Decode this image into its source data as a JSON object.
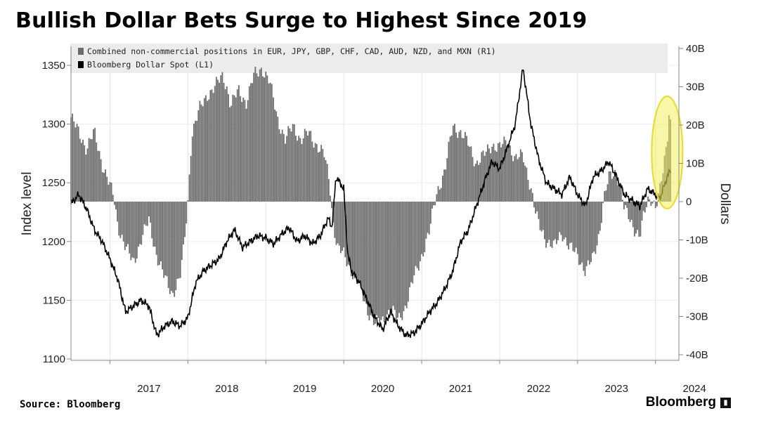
{
  "title": "Bullish Dollar Bets Surge to Highest Since 2019",
  "source": "Source: Bloomberg",
  "brand": "Bloomberg",
  "colors": {
    "bars": "#6b6b6b",
    "line": "#000000",
    "highlight": "#f3ee5f",
    "legend_bg": "#ececec"
  },
  "chart_data": {
    "type": "bar+line",
    "left_axis": {
      "label": "Index level",
      "ylim": [
        1100,
        1360
      ],
      "ticks": [
        1100,
        1150,
        1200,
        1250,
        1300,
        1350
      ]
    },
    "right_axis": {
      "label": "Dollars",
      "ylim": [
        -40,
        40
      ],
      "ticks": [
        "-40B",
        "-30B",
        "-20B",
        "-10B",
        "0",
        "10B",
        "20B",
        "30B",
        "40B"
      ],
      "tick_values": [
        -40,
        -30,
        -20,
        -10,
        0,
        10,
        20,
        30,
        40
      ]
    },
    "x_axis": {
      "range": [
        2016.5,
        2024.3
      ],
      "tick_labels": [
        "2017",
        "2018",
        "2019",
        "2020",
        "2021",
        "2022",
        "2023",
        "2024"
      ]
    },
    "legend": [
      "Combined non-commercial positions in EUR, JPY, GBP, CHF, CAD, AUD, NZD, and MXN (R1)",
      "Bloomberg Dollar Spot (L1)"
    ],
    "series": [
      {
        "name": "Combined non-commercial positions (R1), $B",
        "type": "bar",
        "axis": "right",
        "points": [
          [
            2016.5,
            22
          ],
          [
            2016.6,
            18
          ],
          [
            2016.7,
            14
          ],
          [
            2016.8,
            18
          ],
          [
            2016.9,
            10
          ],
          [
            2017.0,
            4
          ],
          [
            2017.05,
            1
          ],
          [
            2017.1,
            -6
          ],
          [
            2017.2,
            -12
          ],
          [
            2017.3,
            -16
          ],
          [
            2017.4,
            -10
          ],
          [
            2017.5,
            -5
          ],
          [
            2017.6,
            -14
          ],
          [
            2017.7,
            -20
          ],
          [
            2017.8,
            -24
          ],
          [
            2017.9,
            -20
          ],
          [
            2017.95,
            -12
          ],
          [
            2018.0,
            0
          ],
          [
            2018.05,
            18
          ],
          [
            2018.15,
            24
          ],
          [
            2018.25,
            28
          ],
          [
            2018.35,
            30
          ],
          [
            2018.45,
            33
          ],
          [
            2018.5,
            30
          ],
          [
            2018.55,
            25
          ],
          [
            2018.65,
            29
          ],
          [
            2018.75,
            26
          ],
          [
            2018.85,
            33
          ],
          [
            2018.95,
            35
          ],
          [
            2019.05,
            31
          ],
          [
            2019.15,
            22
          ],
          [
            2019.25,
            16
          ],
          [
            2019.35,
            20
          ],
          [
            2019.45,
            16
          ],
          [
            2019.55,
            18
          ],
          [
            2019.65,
            15
          ],
          [
            2019.75,
            12
          ],
          [
            2019.82,
            5
          ],
          [
            2019.86,
            -5
          ],
          [
            2019.92,
            -12
          ],
          [
            2020.0,
            -14
          ],
          [
            2020.1,
            -18
          ],
          [
            2020.2,
            -22
          ],
          [
            2020.3,
            -28
          ],
          [
            2020.4,
            -32
          ],
          [
            2020.5,
            -31
          ],
          [
            2020.6,
            -28
          ],
          [
            2020.7,
            -31
          ],
          [
            2020.8,
            -27
          ],
          [
            2020.9,
            -20
          ],
          [
            2021.0,
            -14
          ],
          [
            2021.1,
            -8
          ],
          [
            2021.15,
            -2
          ],
          [
            2021.2,
            3
          ],
          [
            2021.3,
            8
          ],
          [
            2021.4,
            20
          ],
          [
            2021.5,
            18
          ],
          [
            2021.6,
            15
          ],
          [
            2021.7,
            10
          ],
          [
            2021.8,
            12
          ],
          [
            2021.9,
            15
          ],
          [
            2022.0,
            14
          ],
          [
            2022.1,
            16
          ],
          [
            2022.2,
            11
          ],
          [
            2022.3,
            12
          ],
          [
            2022.4,
            4
          ],
          [
            2022.45,
            -2
          ],
          [
            2022.5,
            -6
          ],
          [
            2022.6,
            -10
          ],
          [
            2022.7,
            -12
          ],
          [
            2022.8,
            -8
          ],
          [
            2022.9,
            -12
          ],
          [
            2023.0,
            -14
          ],
          [
            2023.1,
            -18
          ],
          [
            2023.2,
            -15
          ],
          [
            2023.28,
            -8
          ],
          [
            2023.33,
            0
          ],
          [
            2023.4,
            6
          ],
          [
            2023.5,
            8
          ],
          [
            2023.55,
            4
          ],
          [
            2023.6,
            -2
          ],
          [
            2023.7,
            -6
          ],
          [
            2023.8,
            -9
          ],
          [
            2023.85,
            -4
          ],
          [
            2023.9,
            0
          ],
          [
            2023.95,
            1
          ],
          [
            2024.0,
            -1
          ],
          [
            2024.05,
            2
          ],
          [
            2024.1,
            8
          ],
          [
            2024.15,
            16
          ],
          [
            2024.18,
            26
          ],
          [
            2024.2,
            18
          ]
        ]
      },
      {
        "name": "Bloomberg Dollar Spot (L1)",
        "type": "line",
        "axis": "left",
        "points": [
          [
            2016.5,
            1232
          ],
          [
            2016.6,
            1240
          ],
          [
            2016.7,
            1228
          ],
          [
            2016.8,
            1210
          ],
          [
            2016.9,
            1200
          ],
          [
            2017.0,
            1185
          ],
          [
            2017.1,
            1168
          ],
          [
            2017.2,
            1140
          ],
          [
            2017.3,
            1145
          ],
          [
            2017.4,
            1150
          ],
          [
            2017.5,
            1145
          ],
          [
            2017.6,
            1120
          ],
          [
            2017.7,
            1128
          ],
          [
            2017.8,
            1132
          ],
          [
            2017.9,
            1128
          ],
          [
            2018.0,
            1135
          ],
          [
            2018.1,
            1165
          ],
          [
            2018.2,
            1175
          ],
          [
            2018.3,
            1180
          ],
          [
            2018.4,
            1185
          ],
          [
            2018.5,
            1200
          ],
          [
            2018.6,
            1210
          ],
          [
            2018.7,
            1195
          ],
          [
            2018.8,
            1200
          ],
          [
            2018.9,
            1205
          ],
          [
            2019.0,
            1203
          ],
          [
            2019.1,
            1198
          ],
          [
            2019.2,
            1206
          ],
          [
            2019.3,
            1212
          ],
          [
            2019.4,
            1200
          ],
          [
            2019.5,
            1205
          ],
          [
            2019.6,
            1198
          ],
          [
            2019.7,
            1205
          ],
          [
            2019.8,
            1220
          ],
          [
            2019.85,
            1212
          ],
          [
            2019.9,
            1255
          ],
          [
            2020.0,
            1245
          ],
          [
            2020.05,
            1190
          ],
          [
            2020.1,
            1175
          ],
          [
            2020.2,
            1165
          ],
          [
            2020.3,
            1150
          ],
          [
            2020.4,
            1135
          ],
          [
            2020.5,
            1125
          ],
          [
            2020.6,
            1140
          ],
          [
            2020.7,
            1128
          ],
          [
            2020.8,
            1120
          ],
          [
            2020.9,
            1122
          ],
          [
            2021.0,
            1130
          ],
          [
            2021.1,
            1140
          ],
          [
            2021.2,
            1148
          ],
          [
            2021.3,
            1160
          ],
          [
            2021.4,
            1175
          ],
          [
            2021.5,
            1200
          ],
          [
            2021.6,
            1210
          ],
          [
            2021.7,
            1230
          ],
          [
            2021.8,
            1250
          ],
          [
            2021.9,
            1268
          ],
          [
            2022.0,
            1262
          ],
          [
            2022.1,
            1280
          ],
          [
            2022.2,
            1300
          ],
          [
            2022.3,
            1348
          ],
          [
            2022.4,
            1300
          ],
          [
            2022.5,
            1270
          ],
          [
            2022.6,
            1250
          ],
          [
            2022.7,
            1245
          ],
          [
            2022.8,
            1240
          ],
          [
            2022.9,
            1255
          ],
          [
            2023.0,
            1240
          ],
          [
            2023.1,
            1230
          ],
          [
            2023.2,
            1255
          ],
          [
            2023.3,
            1260
          ],
          [
            2023.4,
            1268
          ],
          [
            2023.5,
            1255
          ],
          [
            2023.6,
            1240
          ],
          [
            2023.7,
            1235
          ],
          [
            2023.8,
            1230
          ],
          [
            2023.9,
            1245
          ],
          [
            2024.0,
            1240
          ],
          [
            2024.05,
            1236
          ],
          [
            2024.1,
            1245
          ],
          [
            2024.15,
            1255
          ],
          [
            2024.2,
            1262
          ]
        ]
      }
    ],
    "annotation": "highlight ellipse around latest surge (2024)"
  }
}
